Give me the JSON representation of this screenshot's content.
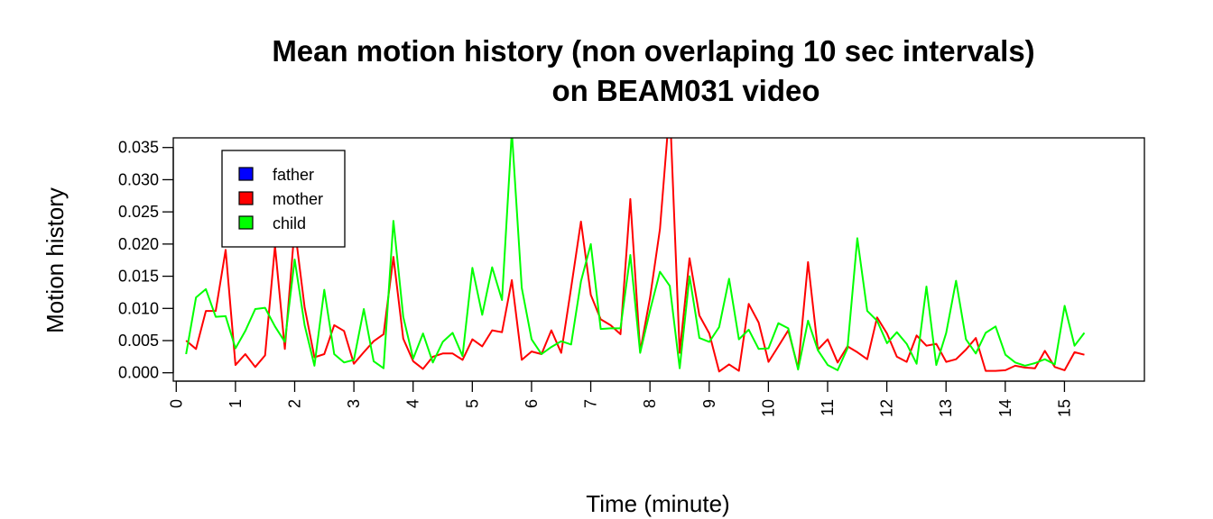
{
  "chart_data": {
    "type": "line",
    "title": "Mean motion history (non overlaping 10 sec intervals)",
    "subtitle": "on BEAM031 video",
    "xlabel": "Time (minute)",
    "ylabel": "Motion history",
    "xlim": [
      -0.05,
      16.35
    ],
    "ylim": [
      -0.0013,
      0.0365
    ],
    "x_ticks": [
      "0",
      "1",
      "2",
      "3",
      "4",
      "5",
      "6",
      "7",
      "8",
      "9",
      "10",
      "11",
      "12",
      "13",
      "14",
      "15"
    ],
    "y_ticks": [
      "0.000",
      "0.005",
      "0.010",
      "0.015",
      "0.020",
      "0.025",
      "0.030",
      "0.035"
    ],
    "grid": false,
    "legend_position": "top-left",
    "legend": [
      {
        "label": "father",
        "color": "#0000ff"
      },
      {
        "label": "mother",
        "color": "#ff0000"
      },
      {
        "label": "child",
        "color": "#00ff00"
      }
    ],
    "series": [
      {
        "name": "mother",
        "color": "#ff0000",
        "x_start": 0.1667,
        "x_step": 0.1667,
        "values": [
          0.005,
          0.0037,
          0.0096,
          0.0096,
          0.0191,
          0.0012,
          0.0029,
          0.0009,
          0.0027,
          0.0197,
          0.0037,
          0.0226,
          0.0102,
          0.0024,
          0.0029,
          0.0074,
          0.0065,
          0.0014,
          0.0032,
          0.0049,
          0.006,
          0.018,
          0.0053,
          0.0018,
          0.0006,
          0.0025,
          0.003,
          0.003,
          0.002,
          0.0052,
          0.0041,
          0.0066,
          0.0063,
          0.0144,
          0.002,
          0.0033,
          0.0029,
          0.0066,
          0.0031,
          0.0132,
          0.0235,
          0.0121,
          0.0083,
          0.0074,
          0.006,
          0.027,
          0.0033,
          0.0117,
          0.0223,
          0.0415,
          0.0031,
          0.0178,
          0.0089,
          0.0061,
          0.0002,
          0.0013,
          0.0003,
          0.0107,
          0.0078,
          0.0017,
          0.0041,
          0.0066,
          0.0007,
          0.0172,
          0.0036,
          0.0052,
          0.0016,
          0.0041,
          0.0032,
          0.0021,
          0.0086,
          0.0061,
          0.0025,
          0.0017,
          0.0058,
          0.0042,
          0.0045,
          0.0017,
          0.0021,
          0.0036,
          0.0054,
          0.0003,
          0.0003,
          0.0004,
          0.0011,
          0.0008,
          0.0007,
          0.0034,
          0.0009,
          0.0004,
          0.0032,
          0.0028
        ]
      },
      {
        "name": "child",
        "color": "#00ff00",
        "x_start": 0.1667,
        "x_step": 0.1667,
        "values": [
          0.0029,
          0.0117,
          0.013,
          0.0087,
          0.0088,
          0.0038,
          0.0065,
          0.0099,
          0.0101,
          0.0072,
          0.0048,
          0.0176,
          0.0074,
          0.0011,
          0.0129,
          0.0029,
          0.0016,
          0.002,
          0.0099,
          0.0018,
          0.0007,
          0.0236,
          0.0087,
          0.0022,
          0.0061,
          0.0016,
          0.0048,
          0.0062,
          0.0026,
          0.0163,
          0.009,
          0.0164,
          0.0113,
          0.0375,
          0.0132,
          0.0052,
          0.0029,
          0.004,
          0.0049,
          0.0044,
          0.0142,
          0.02,
          0.0068,
          0.0069,
          0.0069,
          0.0183,
          0.0031,
          0.0097,
          0.0157,
          0.0135,
          0.0007,
          0.015,
          0.0054,
          0.0048,
          0.0071,
          0.0146,
          0.0052,
          0.0067,
          0.0037,
          0.0038,
          0.0077,
          0.0069,
          0.0005,
          0.0081,
          0.0035,
          0.0012,
          0.0004,
          0.0038,
          0.0209,
          0.0096,
          0.0081,
          0.0046,
          0.0063,
          0.0045,
          0.0014,
          0.0134,
          0.0012,
          0.0062,
          0.0143,
          0.0052,
          0.003,
          0.0062,
          0.0072,
          0.0028,
          0.0016,
          0.0011,
          0.0015,
          0.0021,
          0.0013,
          0.0104,
          0.0042,
          0.0062
        ]
      }
    ]
  }
}
